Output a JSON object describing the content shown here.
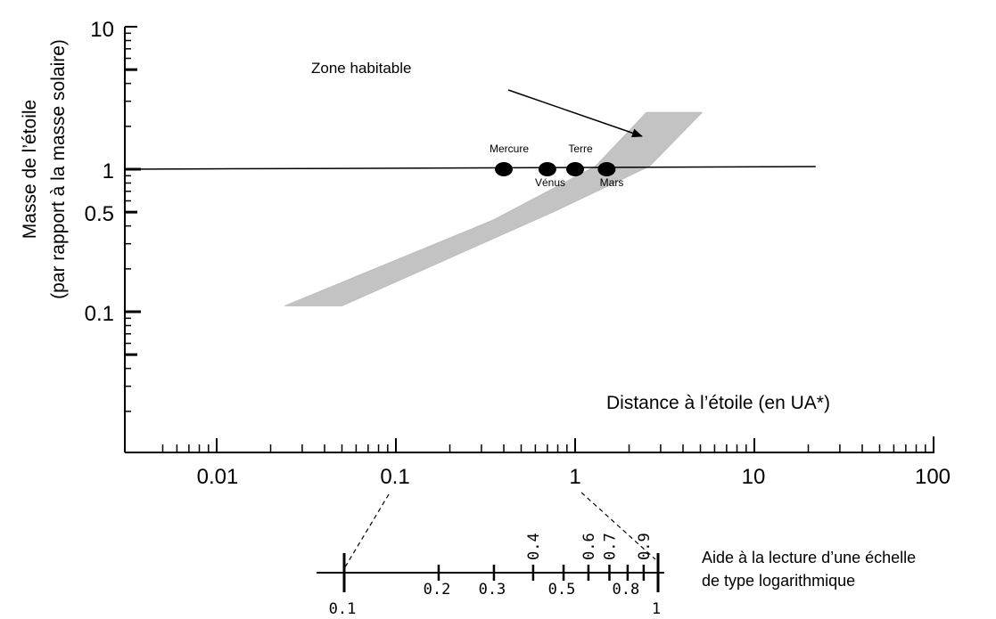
{
  "chart_data": {
    "type": "scatter",
    "title": "",
    "xlabel": "Distance à l’étoile (en UA*)",
    "ylabel": "Masse de l’étoile",
    "ylabel_sub": "(par rapport à la masse solaire)",
    "x_scale": "log",
    "y_scale": "log",
    "xlim": [
      0.003,
      100
    ],
    "ylim": [
      0.01,
      10
    ],
    "grid": false,
    "x_ticks": [
      "0.01",
      "0.1",
      "1",
      "10",
      "100"
    ],
    "y_ticks": [
      "10",
      "1",
      "0.5",
      "0.1"
    ],
    "reference_line": {
      "y": 1,
      "x_range": [
        0.003,
        22
      ]
    },
    "habitable_zone": {
      "label": "Zone habitable",
      "polygon": [
        [
          0.024,
          0.11
        ],
        [
          0.35,
          0.44
        ],
        [
          1.3,
          1.05
        ],
        [
          2.5,
          2.5
        ],
        [
          5.1,
          2.5
        ],
        [
          2.6,
          1.05
        ],
        [
          0.75,
          0.5
        ],
        [
          0.05,
          0.11
        ]
      ]
    },
    "points": [
      {
        "name": "Mercure",
        "x": 0.4,
        "y": 1
      },
      {
        "name": "Vénus",
        "x": 0.7,
        "y": 1
      },
      {
        "name": "Terre",
        "x": 1,
        "y": 1
      },
      {
        "name": "Mars",
        "x": 1.5,
        "y": 1
      }
    ]
  },
  "helper_scale": {
    "note_line1": "Aide à la lecture d’une échelle",
    "note_line2": "de type logarithmique",
    "ticks": [
      {
        "label": "0.1",
        "value": 0.1,
        "position": "below"
      },
      {
        "label": "0.2",
        "value": 0.2,
        "position": "below"
      },
      {
        "label": "0.3",
        "value": 0.3,
        "position": "below"
      },
      {
        "label": "0.4",
        "value": 0.4,
        "position": "above"
      },
      {
        "label": "0.5",
        "value": 0.5,
        "position": "below"
      },
      {
        "label": "0.6",
        "value": 0.6,
        "position": "above"
      },
      {
        "label": "0.7",
        "value": 0.7,
        "position": "above"
      },
      {
        "label": "0.8",
        "value": 0.8,
        "position": "below"
      },
      {
        "label": "0.9",
        "value": 0.9,
        "position": "above"
      },
      {
        "label": "1",
        "value": 1,
        "position": "below"
      }
    ]
  }
}
